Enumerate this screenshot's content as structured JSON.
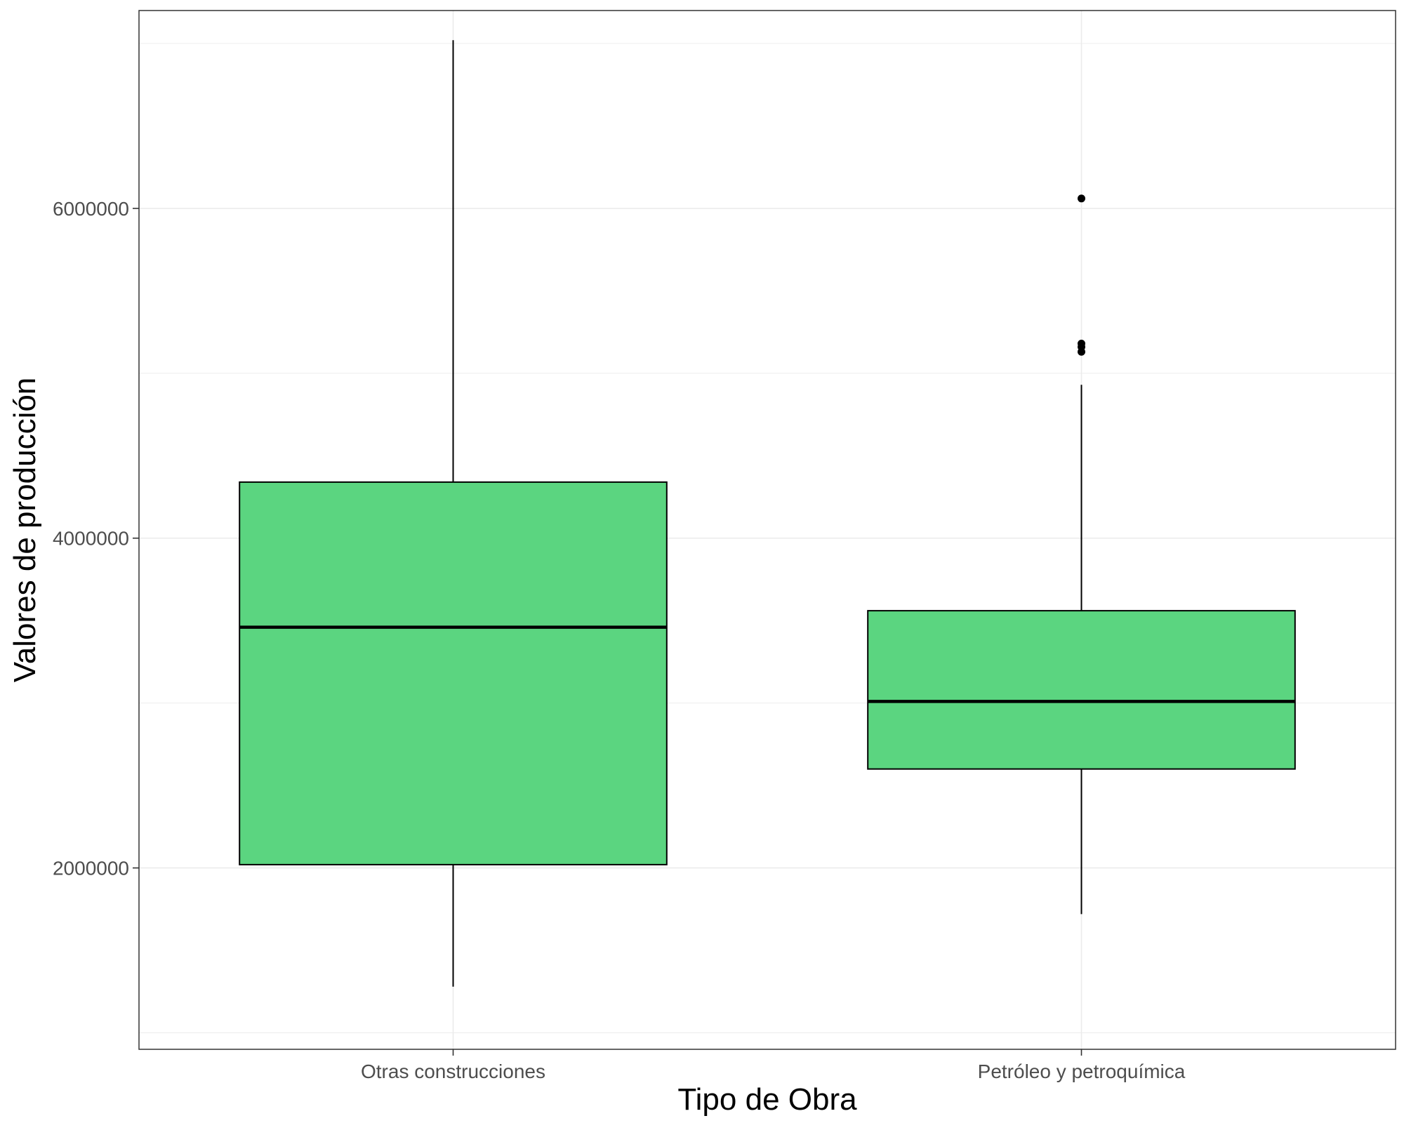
{
  "chart_data": {
    "type": "boxplot",
    "title": "",
    "xlabel": "Tipo de Obra",
    "ylabel": "Valores de producción",
    "categories": [
      "Otras construcciones",
      "Petróleo y petroquímica"
    ],
    "ylim": [
      900000,
      7200000
    ],
    "y_ticks": [
      2000000,
      4000000,
      6000000
    ],
    "y_tick_labels": [
      "2000000",
      "4000000",
      "6000000"
    ],
    "grid": true,
    "fill_color": "#5BD580",
    "boxes": [
      {
        "category": "Otras construcciones",
        "whisker_low": 1280000,
        "q1": 2020000,
        "median": 3460000,
        "q3": 4340000,
        "whisker_high": 7020000,
        "outliers": []
      },
      {
        "category": "Petróleo y petroquímica",
        "whisker_low": 1720000,
        "q1": 2600000,
        "median": 3010000,
        "q3": 3560000,
        "whisker_high": 4930000,
        "outliers": [
          6060000,
          5180000,
          5160000,
          5130000
        ]
      }
    ]
  }
}
